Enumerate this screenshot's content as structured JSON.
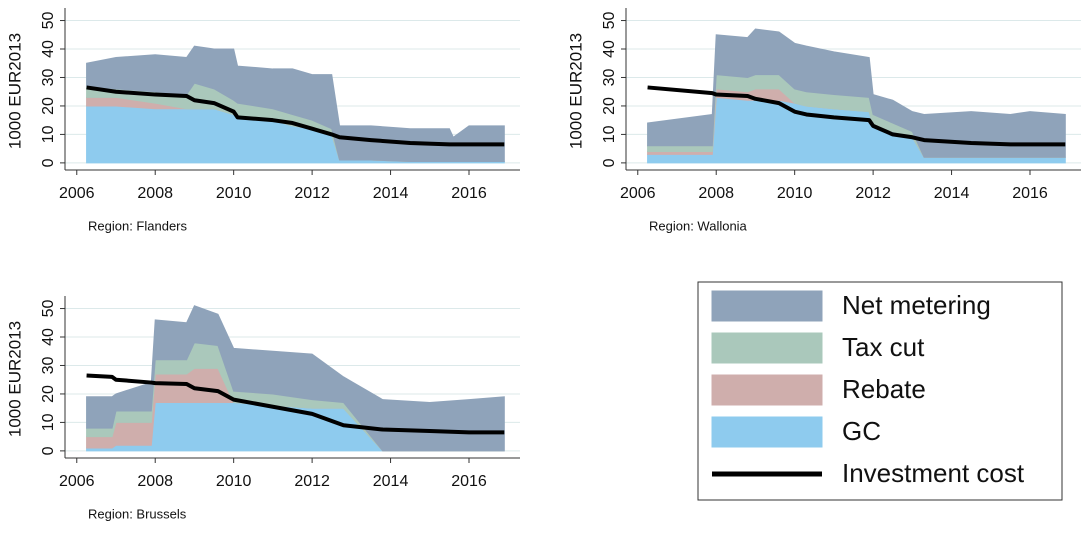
{
  "chart_data": [
    {
      "type": "area",
      "stacked": true,
      "xlabel_note": null,
      "title": "Region: Flanders",
      "ylabel": "1000 EUR2013",
      "x": [
        2006.25,
        2007.0,
        2008.0,
        2008.8,
        2009.0,
        2009.5,
        2010.0,
        2010.1,
        2011.0,
        2011.5,
        2012.0,
        2012.5,
        2012.7,
        2013.5,
        2014.5,
        2015.5,
        2015.6,
        2016.0,
        2016.9
      ],
      "series": [
        {
          "color": "#8ecbee",
          "values": [
            20,
            20,
            19,
            19,
            19,
            19,
            17,
            16,
            15,
            13,
            12,
            10,
            1,
            1,
            0.5,
            0.5,
            0.5,
            0.5,
            0.5
          ]
        },
        {
          "color": "#cfaeac",
          "values": [
            3,
            3,
            2,
            0,
            0,
            0,
            0,
            0,
            0,
            0,
            0,
            0,
            0,
            0,
            0,
            0,
            0,
            0,
            0
          ]
        },
        {
          "color": "#aac8bb",
          "values": [
            4,
            3,
            4,
            5,
            9,
            7,
            5,
            5,
            4,
            4,
            3,
            2,
            0,
            0,
            0,
            0,
            0,
            0,
            0
          ]
        },
        {
          "color": "#8fa3ba",
          "values": [
            8,
            11,
            13,
            13,
            13,
            14,
            18,
            13,
            14,
            16,
            16,
            19,
            12,
            12,
            11.5,
            11.5,
            8.5,
            12.5,
            12.5
          ]
        },
        {
          "color": "#000000",
          "kind": "line",
          "values": [
            26.5,
            25,
            24,
            23.5,
            22,
            21,
            18,
            16,
            15,
            14,
            12,
            10,
            9,
            8,
            7,
            6.5,
            6.5,
            6.5,
            6.5
          ]
        }
      ],
      "xlim": [
        2005.7,
        2017.3
      ],
      "xticks": [
        2006,
        2008,
        2010,
        2012,
        2014,
        2016
      ],
      "ylim": [
        -2.5,
        53
      ],
      "yticks": [
        0,
        10,
        20,
        30,
        40,
        50
      ],
      "grid": true
    },
    {
      "type": "area",
      "stacked": true,
      "title": "Region: Wallonia",
      "ylabel": "1000 EUR2013",
      "x": [
        2006.25,
        2007.9,
        2008.0,
        2008.8,
        2009.0,
        2009.6,
        2010.0,
        2010.3,
        2011.0,
        2011.9,
        2012.0,
        2012.5,
        2013.0,
        2013.3,
        2014.5,
        2015.5,
        2016.0,
        2016.9
      ],
      "series": [
        {
          "color": "#8ecbee",
          "values": [
            3,
            3,
            23,
            22,
            22,
            22,
            21,
            20,
            19,
            18,
            13,
            11,
            9,
            2,
            2,
            2,
            2,
            2
          ]
        },
        {
          "color": "#cfaeac",
          "values": [
            1,
            1,
            3,
            3,
            4,
            4,
            0,
            0,
            0,
            0,
            0,
            0,
            0,
            0,
            0,
            0,
            0,
            0
          ]
        },
        {
          "color": "#aac8bb",
          "values": [
            2,
            2,
            5,
            5,
            5,
            5,
            5,
            5,
            5,
            5,
            4,
            3,
            2,
            0,
            0,
            0,
            0,
            0
          ]
        },
        {
          "color": "#8fa3ba",
          "values": [
            8,
            11,
            14,
            14,
            16,
            15,
            16,
            16,
            15,
            14,
            7,
            8,
            7,
            15,
            16,
            15,
            16,
            15
          ]
        },
        {
          "color": "#000000",
          "kind": "line",
          "values": [
            26.5,
            24.5,
            24,
            23.5,
            22.5,
            21,
            18,
            17,
            16,
            15,
            13,
            10,
            9,
            8,
            7,
            6.5,
            6.5,
            6.5
          ]
        }
      ],
      "xlim": [
        2005.7,
        2017.3
      ],
      "xticks": [
        2006,
        2008,
        2010,
        2012,
        2014,
        2016
      ],
      "ylim": [
        -2.5,
        53
      ],
      "yticks": [
        0,
        10,
        20,
        30,
        40,
        50
      ],
      "grid": true
    },
    {
      "type": "area",
      "stacked": true,
      "title": "Region: Brussels",
      "ylabel": "1000 EUR2013",
      "legend": "right",
      "x": [
        2006.25,
        2006.9,
        2007.0,
        2007.9,
        2008.0,
        2008.8,
        2009.0,
        2009.6,
        2010.0,
        2011.0,
        2012.0,
        2012.8,
        2013.8,
        2015.0,
        2016.0,
        2016.9
      ],
      "series": [
        {
          "name": "GC",
          "color": "#8ecbee",
          "values": [
            1,
            1,
            2,
            2,
            17,
            17,
            17,
            17,
            17,
            16,
            15,
            15,
            0,
            0,
            0,
            0
          ]
        },
        {
          "name": "Rebate",
          "color": "#cfaeac",
          "values": [
            4,
            4,
            8,
            8,
            10,
            10,
            12,
            12,
            0,
            0,
            0,
            0,
            0,
            0,
            0,
            0
          ]
        },
        {
          "name": "Tax cut",
          "color": "#aac8bb",
          "values": [
            3,
            3,
            4,
            4,
            5,
            5,
            9,
            8,
            4,
            4,
            3,
            2,
            0,
            0,
            0,
            0
          ]
        },
        {
          "name": "Net metering",
          "color": "#8fa3ba",
          "values": [
            11,
            11,
            6,
            10,
            14,
            13,
            13,
            11,
            15,
            15,
            16,
            9,
            18,
            17,
            18,
            19
          ]
        },
        {
          "name": "Investment cost",
          "color": "#000000",
          "kind": "line",
          "values": [
            26.5,
            26,
            25,
            24,
            23.8,
            23.5,
            22,
            21,
            18,
            15.5,
            13,
            9,
            7.5,
            7,
            6.5,
            6.5
          ]
        }
      ],
      "xlim": [
        2005.7,
        2017.3
      ],
      "xticks": [
        2006,
        2008,
        2010,
        2012,
        2014,
        2016
      ],
      "ylim": [
        -2.5,
        53
      ],
      "yticks": [
        0,
        10,
        20,
        30,
        40,
        50
      ],
      "grid": true
    }
  ]
}
